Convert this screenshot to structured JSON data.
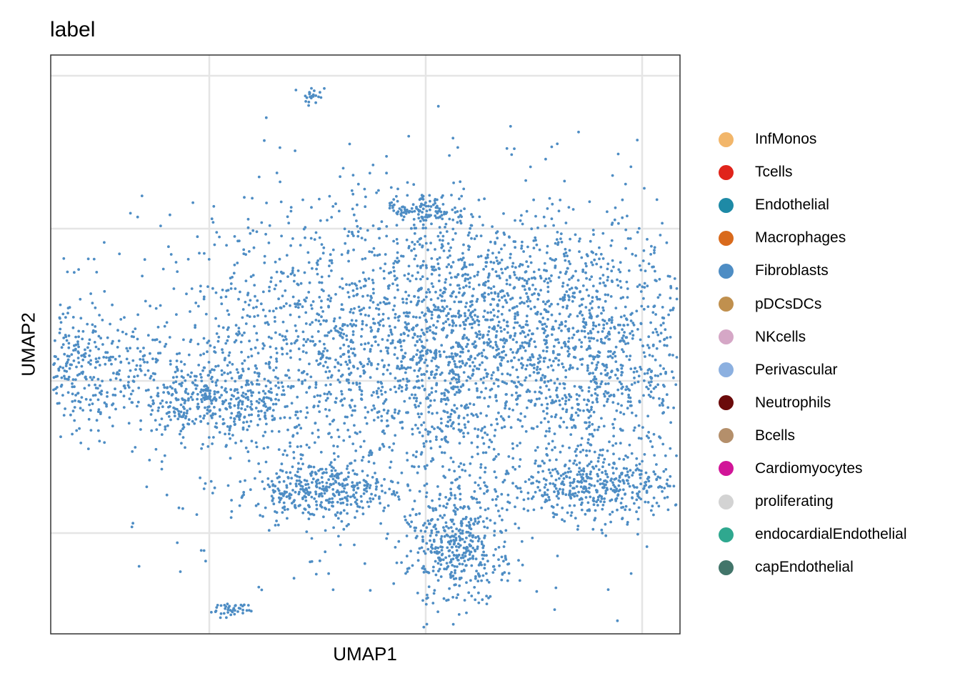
{
  "chart_data": {
    "type": "scatter",
    "title": "label",
    "xlabel": "UMAP1",
    "ylabel": "UMAP2",
    "xlim": [
      -6,
      6
    ],
    "ylim": [
      -6,
      6
    ],
    "x_ticks": [
      -4,
      0,
      4
    ],
    "y_ticks": [
      -4,
      0,
      4
    ],
    "tick_labels_shown": false,
    "grid": true,
    "legend_position": "right",
    "point_color": "#4E8DC4",
    "legend": [
      {
        "label": "InfMonos",
        "color": "#F2B66A"
      },
      {
        "label": "Tcells",
        "color": "#E0241B"
      },
      {
        "label": "Endothelial",
        "color": "#1E8AA6"
      },
      {
        "label": "Macrophages",
        "color": "#D96A1C"
      },
      {
        "label": "Fibroblasts",
        "color": "#4E8DC4"
      },
      {
        "label": "pDCsDCs",
        "color": "#C0904E"
      },
      {
        "label": "NKcells",
        "color": "#D5A7C6"
      },
      {
        "label": "Perivascular",
        "color": "#8CB0E0"
      },
      {
        "label": "Neutrophils",
        "color": "#6B0A0A"
      },
      {
        "label": "Bcells",
        "color": "#B48F6B"
      },
      {
        "label": "Cardiomyocytes",
        "color": "#D11598"
      },
      {
        "label": "proliferating",
        "color": "#D3D3D3"
      },
      {
        "label": "endocardialEndothelial",
        "color": "#2FA88F"
      },
      {
        "label": "capEndothelial",
        "color": "#42756A"
      }
    ],
    "series": [
      {
        "label": "Fibroblasts",
        "clusters": [
          {
            "cx": 0.0,
            "cy": 0.6,
            "sx": 2.6,
            "sy": 2.3,
            "n": 2100
          },
          {
            "cx": 1.6,
            "cy": 1.9,
            "sx": 1.4,
            "sy": 1.2,
            "n": 450
          },
          {
            "cx": 3.3,
            "cy": 0.3,
            "sx": 0.9,
            "sy": 1.5,
            "n": 520
          },
          {
            "cx": 3.1,
            "cy": -2.8,
            "sx": 0.8,
            "sy": 0.35,
            "n": 360
          },
          {
            "cx": 0.6,
            "cy": -4.4,
            "sx": 0.45,
            "sy": 0.75,
            "n": 420
          },
          {
            "cx": -1.9,
            "cy": -2.9,
            "sx": 0.65,
            "sy": 0.35,
            "n": 340
          },
          {
            "cx": -3.8,
            "cy": -0.5,
            "sx": 0.75,
            "sy": 0.45,
            "n": 320
          },
          {
            "cx": -2.2,
            "cy": 1.6,
            "sx": 1.1,
            "sy": 1.4,
            "n": 260
          },
          {
            "cx": 0.0,
            "cy": 4.5,
            "sx": 0.35,
            "sy": 0.25,
            "n": 120
          },
          {
            "cx": 0.4,
            "cy": 0.8,
            "sx": 0.45,
            "sy": 1.6,
            "n": 250
          },
          {
            "cx": -6.6,
            "cy": 0.5,
            "sx": 0.55,
            "sy": 0.8,
            "n": 260
          },
          {
            "cx": -5.4,
            "cy": 0.3,
            "sx": 0.9,
            "sy": 0.6,
            "n": 110
          },
          {
            "cx": -4.6,
            "cy": -0.8,
            "sx": 0.12,
            "sy": 0.2,
            "n": 18
          },
          {
            "cx": -3.6,
            "cy": -6.0,
            "sx": 0.18,
            "sy": 0.08,
            "n": 40
          },
          {
            "cx": -2.1,
            "cy": 7.5,
            "sx": 0.12,
            "sy": 0.12,
            "n": 22
          }
        ]
      }
    ]
  }
}
